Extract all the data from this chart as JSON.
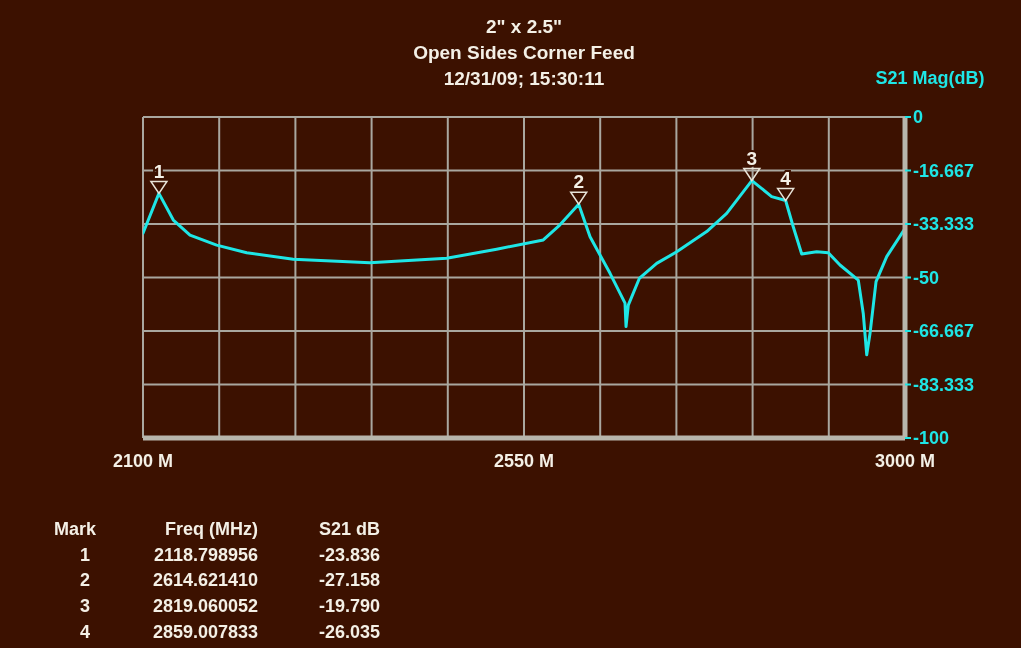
{
  "chart_data": {
    "type": "line",
    "title": "2\" x 2.5\"",
    "subtitle": "Open Sides Corner Feed",
    "ylabel": "S21 Mag(dB)",
    "xlim": [
      2100,
      3000
    ],
    "xticks": [
      {
        "value": 2100,
        "label": "2100 M"
      },
      {
        "value": 2190,
        "label": null
      },
      {
        "value": 2280,
        "label": null
      },
      {
        "value": 2370,
        "label": null
      },
      {
        "value": 2460,
        "label": null
      },
      {
        "value": 2550,
        "label": "2550 M"
      },
      {
        "value": 2640,
        "label": null
      },
      {
        "value": 2730,
        "label": null
      },
      {
        "value": 2820,
        "label": null
      },
      {
        "value": 2910,
        "label": null
      },
      {
        "value": 3000,
        "label": "3000 M"
      }
    ],
    "ylim": [
      -100,
      0
    ],
    "yticks": [
      0,
      -16.667,
      -33.333,
      -50,
      -66.667,
      -83.333,
      -100
    ],
    "grid": true,
    "series": [
      {
        "color": "#1ee6e6",
        "marker": "none",
        "x": [
          2100,
          2118.8,
          2135.8,
          2155.5,
          2187,
          2222.5,
          2277.5,
          2368,
          2458.7,
          2517.7,
          2572.8,
          2592.5,
          2614.6,
          2628,
          2651.6,
          2669.3,
          2670.5,
          2673.2,
          2686.2,
          2706.7,
          2730.4,
          2765.8,
          2789.4,
          2819.1,
          2842.5,
          2859,
          2868,
          2878,
          2895.7,
          2909.4,
          2923.2,
          2944.8,
          2950.7,
          2954.8,
          2958.7,
          2965.8,
          2978.4,
          2998.8
        ],
        "values": [
          -36.2,
          -23.8,
          -32.1,
          -36.8,
          -39.9,
          -42.3,
          -44.3,
          -45.4,
          -44,
          -41.2,
          -38.3,
          -33.6,
          -27.2,
          -37.3,
          -48.7,
          -58,
          -65.3,
          -58.6,
          -50.3,
          -45.6,
          -42,
          -35.7,
          -30,
          -19.8,
          -24.8,
          -26,
          -34.2,
          -42.7,
          -42,
          -42.3,
          -46.1,
          -50.8,
          -61.2,
          -74.1,
          -67.4,
          -51.3,
          -43.5,
          -35.2
        ]
      }
    ],
    "annotations": [
      "12/31/09; 15:30:11",
      {
        "text": "1",
        "x": 2118.798956,
        "y": -23.836
      },
      {
        "text": "2",
        "x": 2614.62141,
        "y": -27.158
      },
      {
        "text": "3",
        "x": 2819.060052,
        "y": -19.79
      },
      {
        "text": "4",
        "x": 2859.007833,
        "y": -26.035
      },
      "Mark",
      "Freq (MHz)",
      "S21 dB",
      "1",
      "2118.798956",
      "-23.836",
      "2",
      "2614.621410",
      "-27.158",
      "3",
      "2819.060052",
      "-19.790",
      "4",
      "2859.007833",
      "-26.035"
    ]
  }
}
